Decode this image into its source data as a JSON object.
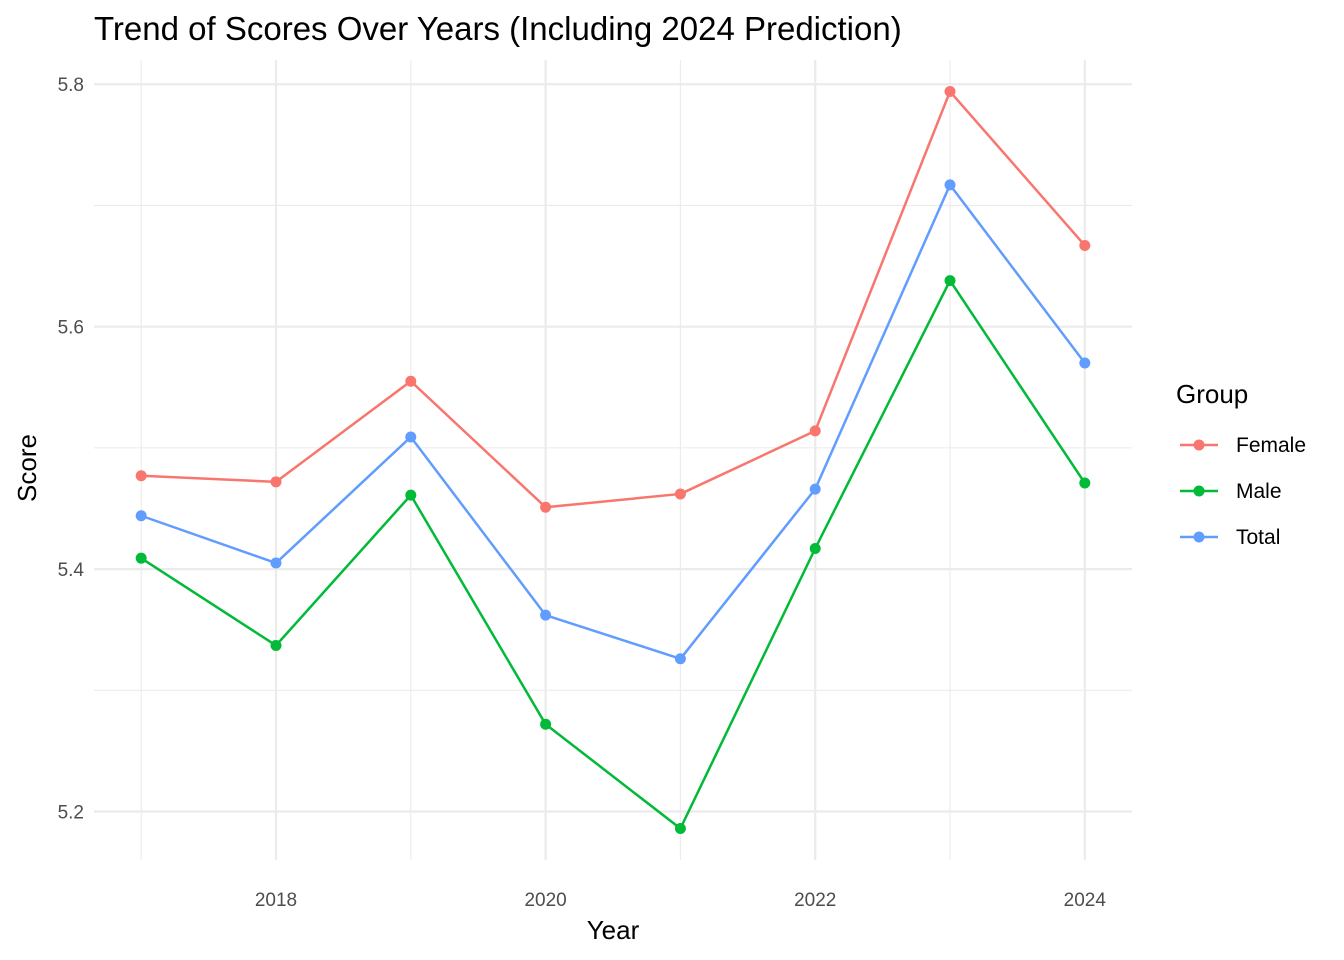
{
  "chart_data": {
    "type": "line",
    "title": "Trend of Scores Over Years (Including 2024 Prediction)",
    "xlabel": "Year",
    "ylabel": "Score",
    "x": [
      2017,
      2018,
      2019,
      2020,
      2021,
      2022,
      2023,
      2024
    ],
    "xlim": [
      2016.65,
      2024.35
    ],
    "ylim": [
      5.16,
      5.82
    ],
    "x_ticks": [
      "2018",
      "2020",
      "2022",
      "2024"
    ],
    "x_tick_values": [
      2018,
      2020,
      2022,
      2024
    ],
    "x_minor_values": [
      2017,
      2019,
      2021,
      2023
    ],
    "y_ticks": [
      "5.2",
      "5.4",
      "5.6",
      "5.8"
    ],
    "y_tick_values": [
      5.2,
      5.4,
      5.6,
      5.8
    ],
    "y_minor_values": [
      5.3,
      5.5,
      5.7
    ],
    "grid": true,
    "legend": {
      "title": "Group",
      "placement": "right"
    },
    "series": [
      {
        "name": "Female",
        "color": "#F8766D",
        "values": [
          5.477,
          5.472,
          5.555,
          5.451,
          5.462,
          5.514,
          5.794,
          5.667
        ]
      },
      {
        "name": "Male",
        "color": "#00BA38",
        "values": [
          5.409,
          5.337,
          5.461,
          5.272,
          5.186,
          5.417,
          5.638,
          5.471
        ]
      },
      {
        "name": "Total",
        "color": "#619CFF",
        "values": [
          5.444,
          5.405,
          5.509,
          5.362,
          5.326,
          5.466,
          5.717,
          5.57
        ]
      }
    ]
  }
}
